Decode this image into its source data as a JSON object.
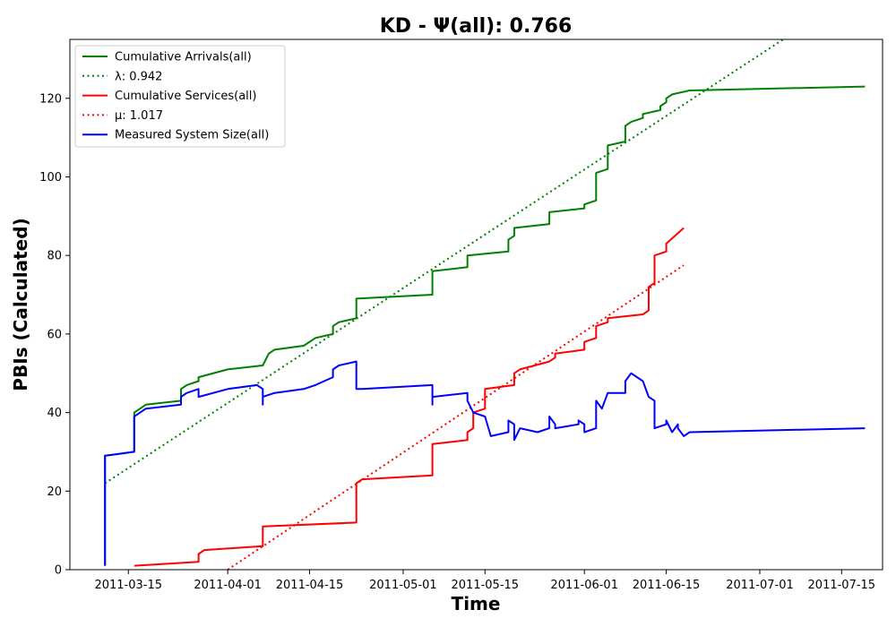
{
  "chart_data": {
    "type": "line",
    "title": "KD -  Ψ(all): 0.766",
    "xlabel": "Time",
    "ylabel": "PBIs (Calculated)",
    "xlim": [
      "2011-03-05",
      "2011-07-22"
    ],
    "ylim": [
      0,
      135
    ],
    "xticks": [
      "2011-03-15",
      "2011-04-01",
      "2011-04-15",
      "2011-05-01",
      "2011-05-15",
      "2011-06-01",
      "2011-06-15",
      "2011-07-01",
      "2011-07-15"
    ],
    "yticks": [
      0,
      20,
      40,
      60,
      80,
      100,
      120
    ],
    "grid": false,
    "legend": "upper-left",
    "series": [
      {
        "name": "Cumulative Arrivals(all)",
        "color": "#008000",
        "style": "solid",
        "points": [
          [
            "2011-03-11",
            1
          ],
          [
            "2011-03-11",
            29
          ],
          [
            "2011-03-16",
            30
          ],
          [
            "2011-03-16",
            40
          ],
          [
            "2011-03-18",
            42
          ],
          [
            "2011-03-24",
            43
          ],
          [
            "2011-03-24",
            46
          ],
          [
            "2011-03-25",
            47
          ],
          [
            "2011-03-27",
            48
          ],
          [
            "2011-03-27",
            49
          ],
          [
            "2011-04-01",
            51
          ],
          [
            "2011-04-07",
            52
          ],
          [
            "2011-04-08",
            55
          ],
          [
            "2011-04-09",
            56
          ],
          [
            "2011-04-14",
            57
          ],
          [
            "2011-04-16",
            59
          ],
          [
            "2011-04-19",
            60
          ],
          [
            "2011-04-19",
            62
          ],
          [
            "2011-04-20",
            63
          ],
          [
            "2011-04-23",
            64
          ],
          [
            "2011-04-23",
            69
          ],
          [
            "2011-05-06",
            70
          ],
          [
            "2011-05-06",
            76
          ],
          [
            "2011-05-12",
            77
          ],
          [
            "2011-05-12",
            80
          ],
          [
            "2011-05-19",
            81
          ],
          [
            "2011-05-19",
            84
          ],
          [
            "2011-05-20",
            85
          ],
          [
            "2011-05-20",
            87
          ],
          [
            "2011-05-26",
            88
          ],
          [
            "2011-05-26",
            91
          ],
          [
            "2011-06-01",
            92
          ],
          [
            "2011-06-01",
            93
          ],
          [
            "2011-06-03",
            94
          ],
          [
            "2011-06-03",
            101
          ],
          [
            "2011-06-05",
            102
          ],
          [
            "2011-06-05",
            108
          ],
          [
            "2011-06-08",
            109
          ],
          [
            "2011-06-08",
            113
          ],
          [
            "2011-06-09",
            114
          ],
          [
            "2011-06-11",
            115
          ],
          [
            "2011-06-11",
            116
          ],
          [
            "2011-06-14",
            117
          ],
          [
            "2011-06-14",
            118
          ],
          [
            "2011-06-15",
            119
          ],
          [
            "2011-06-15",
            120
          ],
          [
            "2011-06-16",
            121
          ],
          [
            "2011-06-19",
            122
          ],
          [
            "2011-07-19",
            123
          ]
        ]
      },
      {
        "name": "λ: 0.942",
        "color": "#008000",
        "style": "dotted",
        "points": [
          [
            "2011-03-11",
            22
          ],
          [
            "2011-07-05",
            135
          ]
        ]
      },
      {
        "name": "Cumulative Services(all)",
        "color": "#ff0000",
        "style": "solid",
        "points": [
          [
            "2011-03-16",
            1
          ],
          [
            "2011-03-27",
            2
          ],
          [
            "2011-03-27",
            4
          ],
          [
            "2011-03-28",
            5
          ],
          [
            "2011-04-07",
            6
          ],
          [
            "2011-04-07",
            11
          ],
          [
            "2011-04-23",
            12
          ],
          [
            "2011-04-23",
            22
          ],
          [
            "2011-04-24",
            23
          ],
          [
            "2011-05-06",
            24
          ],
          [
            "2011-05-06",
            32
          ],
          [
            "2011-05-12",
            33
          ],
          [
            "2011-05-12",
            35
          ],
          [
            "2011-05-13",
            36
          ],
          [
            "2011-05-13",
            40
          ],
          [
            "2011-05-15",
            41
          ],
          [
            "2011-05-15",
            46
          ],
          [
            "2011-05-20",
            47
          ],
          [
            "2011-05-20",
            50
          ],
          [
            "2011-05-21",
            51
          ],
          [
            "2011-05-26",
            53
          ],
          [
            "2011-05-27",
            54
          ],
          [
            "2011-05-27",
            55
          ],
          [
            "2011-06-01",
            56
          ],
          [
            "2011-06-01",
            58
          ],
          [
            "2011-06-03",
            59
          ],
          [
            "2011-06-03",
            62
          ],
          [
            "2011-06-05",
            63
          ],
          [
            "2011-06-05",
            64
          ],
          [
            "2011-06-11",
            65
          ],
          [
            "2011-06-12",
            66
          ],
          [
            "2011-06-12",
            72
          ],
          [
            "2011-06-13",
            73
          ],
          [
            "2011-06-13",
            80
          ],
          [
            "2011-06-15",
            81
          ],
          [
            "2011-06-15",
            83
          ],
          [
            "2011-06-18",
            87
          ]
        ]
      },
      {
        "name": "μ: 1.017",
        "color": "#ff0000",
        "style": "dotted",
        "points": [
          [
            "2011-04-01",
            0
          ],
          [
            "2011-06-18",
            77.5
          ]
        ]
      },
      {
        "name": "Measured System Size(all)",
        "color": "#0000ff",
        "style": "solid",
        "points": [
          [
            "2011-03-11",
            1
          ],
          [
            "2011-03-11",
            29
          ],
          [
            "2011-03-16",
            30
          ],
          [
            "2011-03-16",
            39
          ],
          [
            "2011-03-18",
            41
          ],
          [
            "2011-03-24",
            42
          ],
          [
            "2011-03-24",
            44
          ],
          [
            "2011-03-25",
            45
          ],
          [
            "2011-03-27",
            46
          ],
          [
            "2011-03-27",
            44
          ],
          [
            "2011-04-01",
            46
          ],
          [
            "2011-04-06",
            47
          ],
          [
            "2011-04-07",
            46
          ],
          [
            "2011-04-07",
            42
          ],
          [
            "2011-04-07",
            44
          ],
          [
            "2011-04-09",
            45
          ],
          [
            "2011-04-14",
            46
          ],
          [
            "2011-04-16",
            47
          ],
          [
            "2011-04-19",
            49
          ],
          [
            "2011-04-19",
            51
          ],
          [
            "2011-04-20",
            52
          ],
          [
            "2011-04-23",
            53
          ],
          [
            "2011-04-23",
            46
          ],
          [
            "2011-04-24",
            46
          ],
          [
            "2011-05-06",
            47
          ],
          [
            "2011-05-06",
            42
          ],
          [
            "2011-05-06",
            44
          ],
          [
            "2011-05-12",
            45
          ],
          [
            "2011-05-12",
            43
          ],
          [
            "2011-05-13",
            40
          ],
          [
            "2011-05-15",
            39
          ],
          [
            "2011-05-16",
            34
          ],
          [
            "2011-05-19",
            35
          ],
          [
            "2011-05-19",
            38
          ],
          [
            "2011-05-20",
            37
          ],
          [
            "2011-05-20",
            33
          ],
          [
            "2011-05-21",
            36
          ],
          [
            "2011-05-24",
            35
          ],
          [
            "2011-05-26",
            36
          ],
          [
            "2011-05-26",
            39
          ],
          [
            "2011-05-27",
            37
          ],
          [
            "2011-05-27",
            36
          ],
          [
            "2011-05-31",
            37
          ],
          [
            "2011-05-31",
            38
          ],
          [
            "2011-06-01",
            37
          ],
          [
            "2011-06-01",
            35
          ],
          [
            "2011-06-03",
            36
          ],
          [
            "2011-06-03",
            43
          ],
          [
            "2011-06-04",
            41
          ],
          [
            "2011-06-05",
            45
          ],
          [
            "2011-06-08",
            45
          ],
          [
            "2011-06-08",
            48
          ],
          [
            "2011-06-09",
            50
          ],
          [
            "2011-06-11",
            48
          ],
          [
            "2011-06-12",
            44
          ],
          [
            "2011-06-13",
            43
          ],
          [
            "2011-06-13",
            36
          ],
          [
            "2011-06-15",
            37
          ],
          [
            "2011-06-15",
            38
          ],
          [
            "2011-06-16",
            35
          ],
          [
            "2011-06-17",
            37
          ],
          [
            "2011-06-17",
            36
          ],
          [
            "2011-06-18",
            34
          ],
          [
            "2011-06-19",
            35
          ],
          [
            "2011-07-19",
            36
          ]
        ]
      }
    ]
  }
}
